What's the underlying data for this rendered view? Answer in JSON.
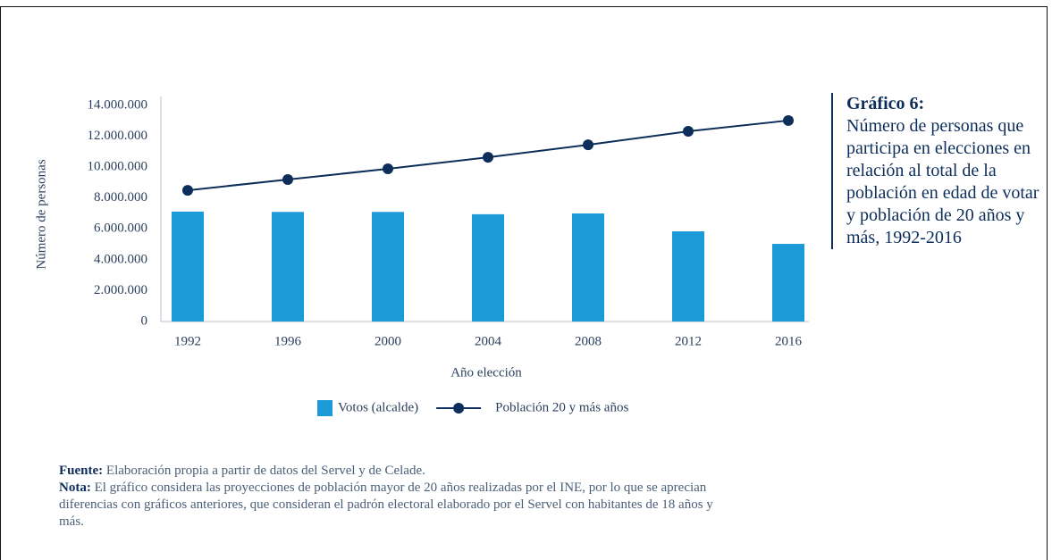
{
  "chart_data": {
    "type": "bar",
    "title": "Gráfico 6:",
    "subtitle": "Número de personas que participa en elecciones en relación al total de la población en edad de votar y población de 20 años y más, 1992-2016",
    "xlabel": "Año elección",
    "ylabel": "Número de personas",
    "categories": [
      "1992",
      "1996",
      "2000",
      "2004",
      "2008",
      "2012",
      "2016"
    ],
    "series": [
      {
        "name": "Votos (alcalde)",
        "type": "bar",
        "color": "#1a9ad6",
        "values": [
          7120000,
          7100000,
          7100000,
          6950000,
          7000000,
          5840000,
          5030000
        ]
      },
      {
        "name": "Población 20 y más años",
        "type": "line",
        "color": "#0d2d5a",
        "values": [
          8500000,
          9200000,
          9890000,
          10640000,
          11450000,
          12320000,
          13020000
        ]
      }
    ],
    "ylim": [
      0,
      14000000
    ],
    "yticks": [
      0,
      {
        "value": 2000000,
        "label": "2.000.000"
      },
      {
        "value": 4000000,
        "label": "4.000.000"
      },
      {
        "value": 6000000,
        "label": "6.000.000"
      },
      {
        "value": 8000000,
        "label": "8.000.000"
      },
      {
        "value": 10000000,
        "label": "10.000.000"
      },
      {
        "value": 12000000,
        "label": "12.000.000"
      },
      {
        "value": 14000000,
        "label": "14.000.000"
      }
    ],
    "legend": "bottom"
  },
  "notes": [
    {
      "label": "Fuente:",
      "text": "Elaboración propia a partir de datos del Servel y de Celade."
    },
    {
      "label": "Nota:",
      "text": "El gráfico considera las proyecciones de población mayor de 20 años realizadas por el INE, por lo que se aprecian diferencias con gráficos anteriores, que consideran el padrón electoral elaborado por el Servel con habitantes de 18 años y más."
    }
  ]
}
